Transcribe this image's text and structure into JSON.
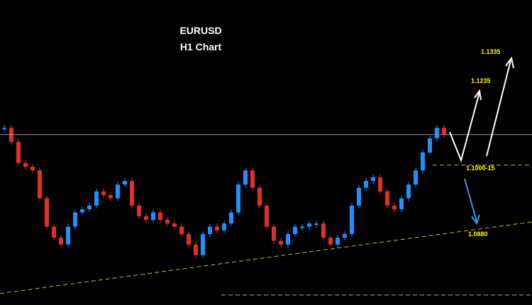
{
  "chart_data": {
    "type": "candlestick",
    "title": "EURUSD",
    "subtitle": "H1 Chart",
    "up_color": "#1e90ff",
    "down_color": "#e0302a",
    "ylim": [
      1.0734,
      1.1314
    ],
    "values": [
      1.1071,
      1.1044,
      1.1004,
      1.0997,
      1.099,
      1.0937,
      1.0883,
      1.0862,
      1.0849,
      1.0883,
      1.091,
      1.0916,
      1.0923,
      1.095,
      1.0943,
      1.0937,
      1.0963,
      1.097,
      1.0923,
      1.0903,
      1.0896,
      1.091,
      1.0896,
      1.0889,
      1.0883,
      1.0869,
      1.0849,
      1.0829,
      1.0869,
      1.0883,
      1.0876,
      1.0889,
      1.091,
      1.0963,
      1.099,
      1.0957,
      1.0923,
      1.0883,
      1.0856,
      1.0849,
      1.0869,
      1.0883,
      1.0883,
      1.0889,
      1.0889,
      1.0862,
      1.0849,
      1.0862,
      1.0869,
      1.0923,
      1.0957,
      1.097,
      1.0977,
      1.095,
      1.0923,
      1.0916,
      1.0937,
      1.0963,
      1.099,
      1.1024,
      1.1051,
      1.1071,
      1.1058
    ],
    "resistance_line": 1.1058,
    "dashed_levels": [
      1.1,
      1.0753
    ],
    "trendline": [
      1.0756,
      1.0892
    ],
    "annotations": [
      "1.1335",
      "1.1235",
      "1.1000-15",
      "1.0880"
    ]
  }
}
